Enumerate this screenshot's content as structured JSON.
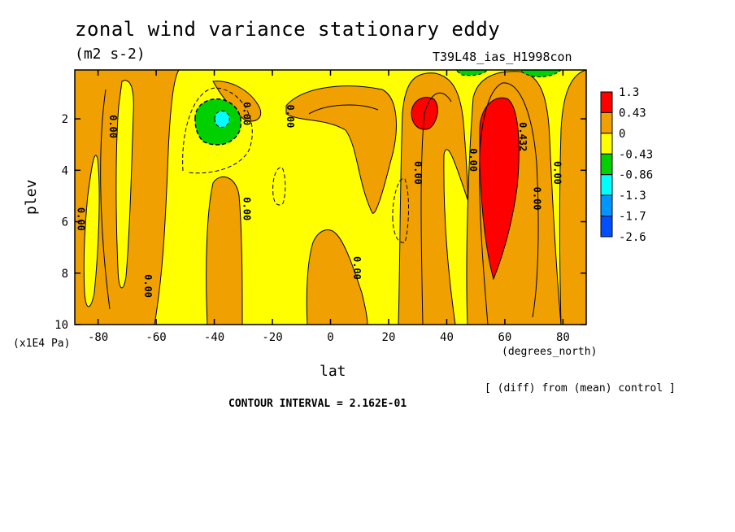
{
  "title": "zonal wind variance stationary eddy",
  "units": "(m2 s-2)",
  "run_label": "T39L48_ias_H1998con",
  "y_unit_label": "(x1E4 Pa)",
  "x_unit_label": "(degrees_north)",
  "footer_note": "[ (diff) from (mean) control ]",
  "contour_interval_text": "CONTOUR INTERVAL = 2.162E-01",
  "colors": {
    "yellow": "#ffff00",
    "orange": "#f0a000",
    "red": "#ff0000",
    "green": "#00d000",
    "cyan": "#00ffff",
    "lightblue": "#0096ff",
    "blue": "#0050ff"
  },
  "chart_data": {
    "type": "heatmap",
    "title": "zonal wind variance stationary eddy",
    "subtitle": "(m2 s-2)",
    "xlabel": "lat",
    "ylabel": "plev",
    "x_ticks": [
      -80,
      -60,
      -40,
      -20,
      0,
      20,
      40,
      60,
      80
    ],
    "x_tick_labels": [
      "-80",
      "-60",
      "-40",
      "-20",
      "0",
      "20",
      "40",
      "60",
      "80"
    ],
    "y_ticks": [
      2,
      4,
      6,
      8,
      10
    ],
    "y_tick_labels": [
      "2",
      "4",
      "6",
      "8",
      "10"
    ],
    "xlim": [
      -88,
      88
    ],
    "ylim": [
      10,
      0.1
    ],
    "contour_labels": [
      {
        "text": "0.00",
        "lat": -76,
        "plev": 2.3
      },
      {
        "text": "0.00",
        "lat": -87,
        "plev": 5.9
      },
      {
        "text": "0.00",
        "lat": -64,
        "plev": 8.5
      },
      {
        "text": "0.00",
        "lat": -30,
        "plev": 1.8
      },
      {
        "text": "0.00",
        "lat": -30,
        "plev": 5.5
      },
      {
        "text": "0.00",
        "lat": -15,
        "plev": 1.9
      },
      {
        "text": "0.00",
        "lat": 8,
        "plev": 7.8
      },
      {
        "text": "0.00",
        "lat": 29,
        "plev": 4.1
      },
      {
        "text": "0.00",
        "lat": 48,
        "plev": 3.6
      },
      {
        "text": "0.432",
        "lat": 65,
        "plev": 2.7
      },
      {
        "text": "0.00",
        "lat": 70,
        "plev": 5.1
      },
      {
        "text": "0.00",
        "lat": 77,
        "plev": 4.1
      }
    ],
    "colorbar": {
      "levels": [
        "1.3",
        "0.43",
        "0",
        "-0.43",
        "-0.86",
        "-1.3",
        "-1.7",
        "-2.6"
      ],
      "colors": [
        "#ff0000",
        "#f0a000",
        "#ffff00",
        "#00d000",
        "#00ffff",
        "#0096ff",
        "#0050ff"
      ]
    },
    "grid": false,
    "contour_interval": 0.2162
  }
}
